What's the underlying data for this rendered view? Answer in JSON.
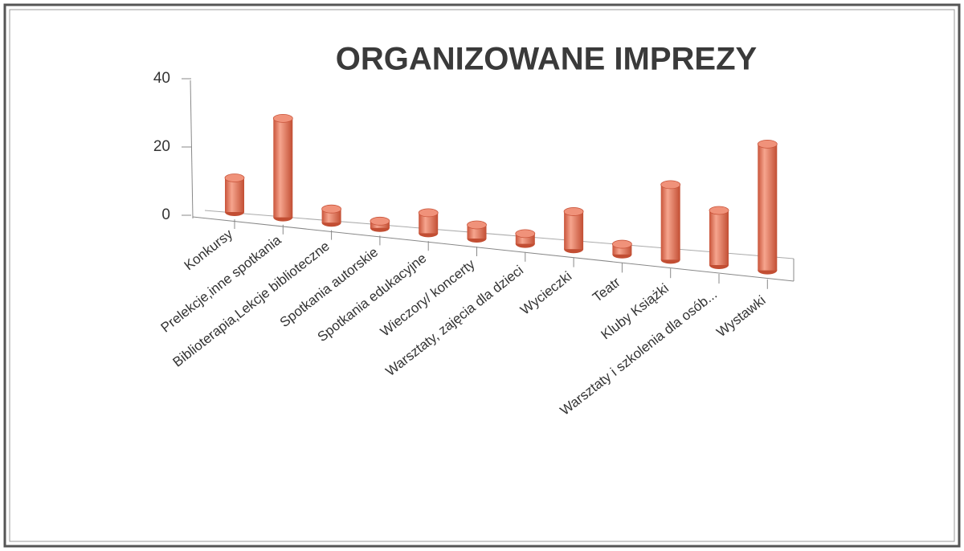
{
  "chart_data": {
    "type": "bar",
    "title": "ORGANIZOWANE IMPREZY",
    "categories": [
      "Konkursy",
      "Prelekcje,inne spotkania",
      "Biblioterapia,Lekcje biblioteczne",
      "Spotkania autorskie",
      "Spotkania edukacyjne",
      "Wieczory/ koncerty",
      "Warsztaty, zajęcia dla dzieci",
      "Wycieczki",
      "Teatr",
      "Kluby Książki",
      "Warsztaty i szkolenia dla osób...",
      "Wystawki"
    ],
    "values": [
      10,
      29,
      4,
      2,
      6,
      4,
      3,
      11,
      3,
      22,
      16,
      37
    ],
    "color": "#e8775a",
    "ylim": [
      0,
      40
    ],
    "yticks": [
      0,
      20,
      40
    ]
  }
}
